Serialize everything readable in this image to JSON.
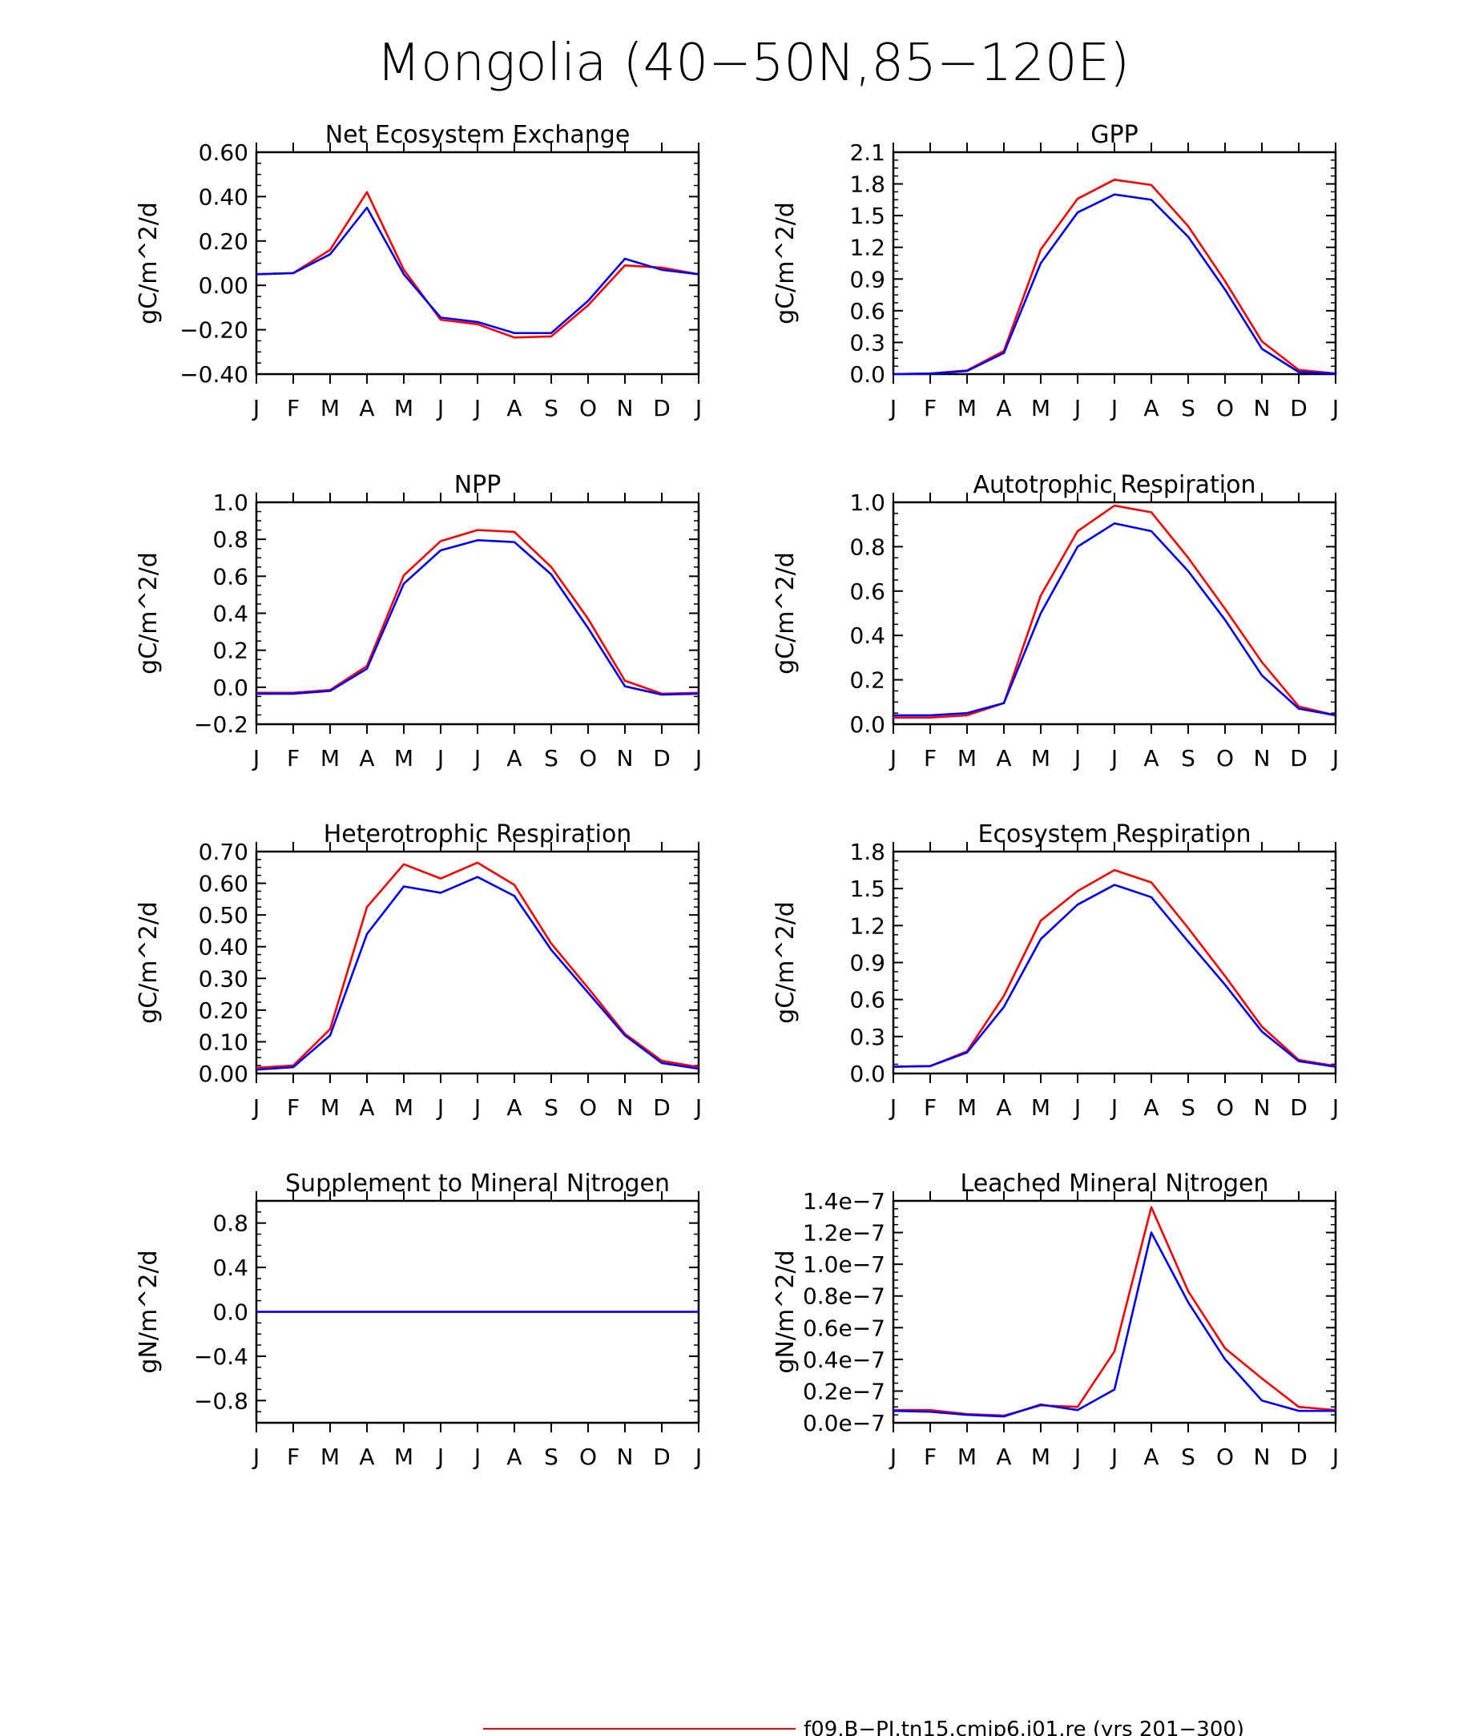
{
  "page": {
    "title": "Mongolia (40−50N,85−120E)",
    "legend": {
      "position": "bottom-center",
      "entries": [
        {
          "label": "f09.B−PI.tn15.cmip6.j01.re (yrs 201−300)",
          "color": "#ff0000"
        }
      ]
    }
  },
  "chart_data": [
    {
      "type": "line",
      "title": "Net Ecosystem Exchange",
      "ylabel": "gC/m^2/d",
      "ylim": [
        -0.4,
        0.6
      ],
      "yticks": [
        "−0.40",
        "−0.20",
        "0.00",
        "0.20",
        "0.40",
        "0.60"
      ],
      "ytick_values": [
        -0.4,
        -0.2,
        0,
        0.2,
        0.4,
        0.6
      ],
      "categories": [
        "J",
        "F",
        "M",
        "A",
        "M",
        "J",
        "J",
        "A",
        "S",
        "O",
        "N",
        "D",
        "J"
      ],
      "series": [
        {
          "color": "#ff0000",
          "values": [
            0.05,
            0.055,
            0.16,
            0.42,
            0.07,
            -0.155,
            -0.175,
            -0.235,
            -0.23,
            -0.09,
            0.09,
            0.08,
            0.05
          ]
        },
        {
          "color": "#0000ff",
          "values": [
            0.05,
            0.055,
            0.14,
            0.35,
            0.05,
            -0.145,
            -0.165,
            -0.215,
            -0.215,
            -0.07,
            0.12,
            0.07,
            0.05
          ]
        }
      ]
    },
    {
      "type": "line",
      "title": "GPP",
      "ylabel": "gC/m^2/d",
      "ylim": [
        0,
        2.1
      ],
      "yticks": [
        "0.0",
        "0.3",
        "0.6",
        "0.9",
        "1.2",
        "1.5",
        "1.8",
        "2.1"
      ],
      "ytick_values": [
        0,
        0.3,
        0.6,
        0.9,
        1.2,
        1.5,
        1.8,
        2.1
      ],
      "categories": [
        "J",
        "F",
        "M",
        "A",
        "M",
        "J",
        "J",
        "A",
        "S",
        "O",
        "N",
        "D",
        "J"
      ],
      "series": [
        {
          "color": "#ff0000",
          "values": [
            0.0,
            0.005,
            0.035,
            0.22,
            1.18,
            1.66,
            1.84,
            1.79,
            1.4,
            0.88,
            0.31,
            0.04,
            0.005
          ]
        },
        {
          "color": "#0000ff",
          "values": [
            0.0,
            0.005,
            0.03,
            0.2,
            1.05,
            1.53,
            1.7,
            1.65,
            1.3,
            0.8,
            0.24,
            0.02,
            0.005
          ]
        }
      ]
    },
    {
      "type": "line",
      "title": "NPP",
      "ylabel": "gC/m^2/d",
      "ylim": [
        -0.2,
        1.0
      ],
      "yticks": [
        "−0.2",
        "0.0",
        "0.2",
        "0.4",
        "0.6",
        "0.8",
        "1.0"
      ],
      "ytick_values": [
        -0.2,
        0,
        0.2,
        0.4,
        0.6,
        0.8,
        1.0
      ],
      "categories": [
        "J",
        "F",
        "M",
        "A",
        "M",
        "J",
        "J",
        "A",
        "S",
        "O",
        "N",
        "D",
        "J"
      ],
      "series": [
        {
          "color": "#ff0000",
          "values": [
            -0.03,
            -0.03,
            -0.015,
            0.115,
            0.605,
            0.79,
            0.85,
            0.84,
            0.65,
            0.37,
            0.035,
            -0.035,
            -0.03
          ]
        },
        {
          "color": "#0000ff",
          "values": [
            -0.035,
            -0.035,
            -0.02,
            0.1,
            0.56,
            0.74,
            0.795,
            0.785,
            0.61,
            0.32,
            0.005,
            -0.04,
            -0.035
          ]
        }
      ]
    },
    {
      "type": "line",
      "title": "Autotrophic Respiration",
      "ylabel": "gC/m^2/d",
      "ylim": [
        0,
        1.0
      ],
      "yticks": [
        "0.0",
        "0.2",
        "0.4",
        "0.6",
        "0.8",
        "1.0"
      ],
      "ytick_values": [
        0,
        0.2,
        0.4,
        0.6,
        0.8,
        1.0
      ],
      "categories": [
        "J",
        "F",
        "M",
        "A",
        "M",
        "J",
        "J",
        "A",
        "S",
        "O",
        "N",
        "D",
        "J"
      ],
      "series": [
        {
          "color": "#ff0000",
          "values": [
            0.03,
            0.03,
            0.04,
            0.095,
            0.58,
            0.87,
            0.985,
            0.955,
            0.75,
            0.52,
            0.28,
            0.08,
            0.04
          ]
        },
        {
          "color": "#0000ff",
          "values": [
            0.04,
            0.04,
            0.05,
            0.095,
            0.5,
            0.8,
            0.905,
            0.87,
            0.69,
            0.47,
            0.22,
            0.07,
            0.04
          ]
        }
      ]
    },
    {
      "type": "line",
      "title": "Heterotrophic Respiration",
      "ylabel": "gC/m^2/d",
      "ylim": [
        0,
        0.7
      ],
      "yticks": [
        "0.00",
        "0.10",
        "0.20",
        "0.30",
        "0.40",
        "0.50",
        "0.60",
        "0.70"
      ],
      "ytick_values": [
        0,
        0.1,
        0.2,
        0.3,
        0.4,
        0.5,
        0.6,
        0.7
      ],
      "categories": [
        "J",
        "F",
        "M",
        "A",
        "M",
        "J",
        "J",
        "A",
        "S",
        "O",
        "N",
        "D",
        "J"
      ],
      "series": [
        {
          "color": "#ff0000",
          "values": [
            0.018,
            0.025,
            0.14,
            0.525,
            0.66,
            0.615,
            0.665,
            0.595,
            0.41,
            0.27,
            0.125,
            0.04,
            0.02
          ]
        },
        {
          "color": "#0000ff",
          "values": [
            0.012,
            0.02,
            0.12,
            0.44,
            0.59,
            0.57,
            0.62,
            0.56,
            0.39,
            0.255,
            0.12,
            0.033,
            0.015
          ]
        }
      ]
    },
    {
      "type": "line",
      "title": "Ecosystem Respiration",
      "ylabel": "gC/m^2/d",
      "ylim": [
        0,
        1.8
      ],
      "yticks": [
        "0.0",
        "0.3",
        "0.6",
        "0.9",
        "1.2",
        "1.5",
        "1.8"
      ],
      "ytick_values": [
        0,
        0.3,
        0.6,
        0.9,
        1.2,
        1.5,
        1.8
      ],
      "categories": [
        "J",
        "F",
        "M",
        "A",
        "M",
        "J",
        "J",
        "A",
        "S",
        "O",
        "N",
        "D",
        "J"
      ],
      "series": [
        {
          "color": "#ff0000",
          "values": [
            0.055,
            0.06,
            0.18,
            0.63,
            1.24,
            1.48,
            1.65,
            1.55,
            1.18,
            0.79,
            0.38,
            0.11,
            0.06
          ]
        },
        {
          "color": "#0000ff",
          "values": [
            0.055,
            0.06,
            0.17,
            0.54,
            1.09,
            1.37,
            1.53,
            1.43,
            1.07,
            0.72,
            0.34,
            0.1,
            0.055
          ]
        }
      ]
    },
    {
      "type": "line",
      "title": "Supplement to Mineral Nitrogen",
      "ylabel": "gN/m^2/d",
      "ylim": [
        -1.0,
        1.0
      ],
      "yticks": [
        "−0.8",
        "−0.4",
        "0.0",
        "0.4",
        "0.8"
      ],
      "ytick_values": [
        -0.8,
        -0.4,
        0,
        0.4,
        0.8
      ],
      "categories": [
        "J",
        "F",
        "M",
        "A",
        "M",
        "J",
        "J",
        "A",
        "S",
        "O",
        "N",
        "D",
        "J"
      ],
      "series": [
        {
          "color": "#ff0000",
          "values": [
            0,
            0,
            0,
            0,
            0,
            0,
            0,
            0,
            0,
            0,
            0,
            0,
            0
          ]
        },
        {
          "color": "#0000ff",
          "values": [
            0,
            0,
            0,
            0,
            0,
            0,
            0,
            0,
            0,
            0,
            0,
            0,
            0
          ]
        }
      ]
    },
    {
      "type": "line",
      "title": "Leached Mineral Nitrogen",
      "ylabel": "gN/m^2/d",
      "ylim": [
        0,
        1.4e-07
      ],
      "yticks": [
        "0.0e−7",
        "0.2e−7",
        "0.4e−7",
        "0.6e−7",
        "0.8e−7",
        "1.0e−7",
        "1.2e−7",
        "1.4e−7"
      ],
      "ytick_values": [
        0,
        2e-08,
        4e-08,
        6e-08,
        8e-08,
        1e-07,
        1.2e-07,
        1.4e-07
      ],
      "categories": [
        "J",
        "F",
        "M",
        "A",
        "M",
        "J",
        "J",
        "A",
        "S",
        "O",
        "N",
        "D",
        "J"
      ],
      "series": [
        {
          "color": "#ff0000",
          "values": [
            8e-09,
            8e-09,
            5.5e-09,
            4.5e-09,
            1.1e-08,
            1e-08,
            4.5e-08,
            1.36e-07,
            8.3e-08,
            4.7e-08,
            2.8e-08,
            1e-08,
            8e-09
          ]
        },
        {
          "color": "#0000ff",
          "values": [
            7.5e-09,
            7e-09,
            5e-09,
            4e-09,
            1.15e-08,
            8e-09,
            2.1e-08,
            1.2e-07,
            7.6e-08,
            4e-08,
            1.4e-08,
            7.5e-09,
            7.5e-09
          ]
        }
      ]
    }
  ]
}
